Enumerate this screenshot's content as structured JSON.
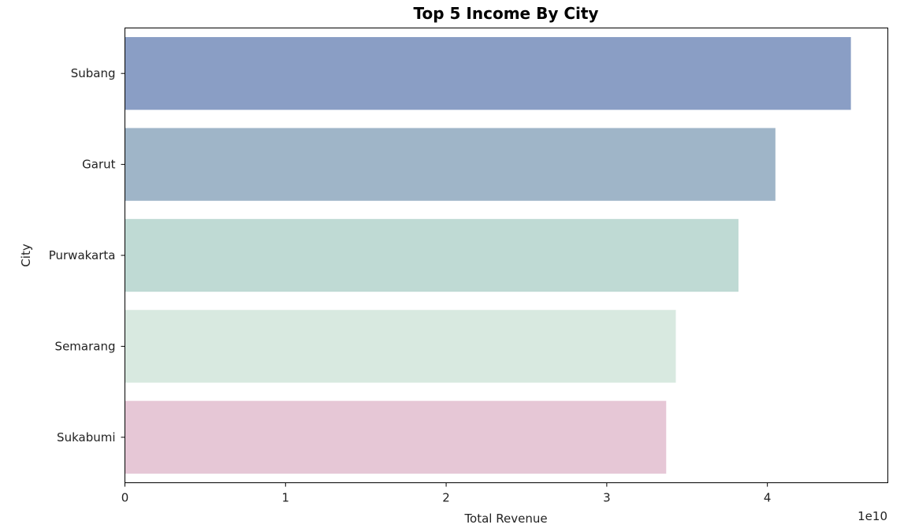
{
  "chart_data": {
    "type": "bar",
    "orientation": "horizontal",
    "title": "Top 5 Income By City",
    "xlabel": "Total Revenue",
    "ylabel": "City",
    "x_offset_label": "1e10",
    "xlim": [
      0,
      4.75
    ],
    "xticks": [
      {
        "value": 0,
        "label": "0"
      },
      {
        "value": 1,
        "label": "1"
      },
      {
        "value": 2,
        "label": "2"
      },
      {
        "value": 3,
        "label": "3"
      },
      {
        "value": 4,
        "label": "4"
      }
    ],
    "grid": false,
    "bars": [
      {
        "category": "Subang",
        "value": 4.52,
        "color": "#8a9ec5"
      },
      {
        "category": "Garut",
        "value": 4.05,
        "color": "#9fb5c8"
      },
      {
        "category": "Purwakarta",
        "value": 3.82,
        "color": "#bfdad4"
      },
      {
        "category": "Semarang",
        "value": 3.43,
        "color": "#d8e9e0"
      },
      {
        "category": "Sukabumi",
        "value": 3.37,
        "color": "#e6c7d6"
      }
    ]
  }
}
